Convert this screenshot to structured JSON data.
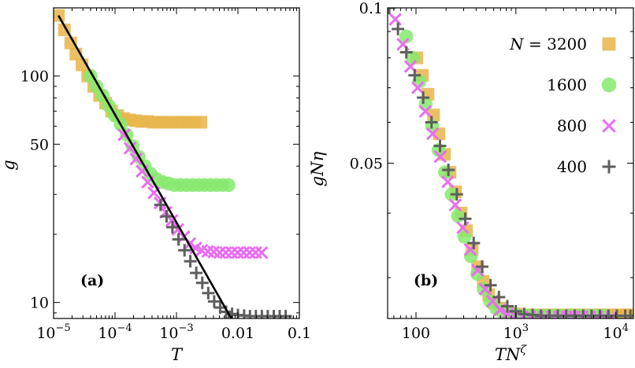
{
  "chart_data": [
    {
      "type": "scatter",
      "panel_label": "(a)",
      "xlabel": "T",
      "ylabel": "g",
      "xscale": "log",
      "yscale": "log",
      "xlim": [
        1e-05,
        0.1
      ],
      "ylim": [
        8.5,
        200
      ],
      "x_ticks": [
        {
          "value": 1e-05,
          "mant": "10",
          "exp": "−5"
        },
        {
          "value": 0.0001,
          "mant": "10",
          "exp": "−4"
        },
        {
          "value": 0.001,
          "mant": "10",
          "exp": "−3"
        },
        {
          "value": 0.01,
          "mant": "0.01",
          "exp": ""
        },
        {
          "value": 0.1,
          "mant": "0.1",
          "exp": ""
        }
      ],
      "y_ticks": [
        {
          "value": 10,
          "label": "10"
        },
        {
          "value": 50,
          "label": "50"
        },
        {
          "value": 100,
          "label": "100"
        }
      ],
      "series": [
        {
          "name": "N = 3200",
          "marker": "square",
          "color": "#e8b54a",
          "x": [
            1.2e-05,
            1.5e-05,
            1.9e-05,
            2.3e-05,
            2.9e-05,
            3.6e-05,
            4.5e-05,
            5.6e-05,
            7e-05,
            8.8e-05,
            0.00011,
            0.000138,
            0.000173,
            0.000216,
            0.00027,
            0.000338,
            0.000423,
            0.00053,
            0.00066,
            0.00083,
            0.00104,
            0.0013,
            0.00162,
            0.002,
            0.0025
          ],
          "y": [
            185,
            160,
            140,
            125,
            112,
            100,
            90,
            82,
            76,
            70,
            67,
            65,
            64,
            63.5,
            63,
            63,
            62.5,
            62.5,
            62.5,
            62.5,
            62.5,
            62.5,
            62.5,
            62.5,
            62.5
          ]
        },
        {
          "name": "1600",
          "marker": "circle",
          "color": "#86e96f",
          "x": [
            4e-05,
            5e-05,
            6.3e-05,
            7.9e-05,
            9.9e-05,
            0.000124,
            0.000155,
            0.000194,
            0.000243,
            0.000304,
            0.00038,
            0.000476,
            0.000596,
            0.000746,
            0.00093,
            0.00117,
            0.00146,
            0.00183,
            0.00229,
            0.00287,
            0.00359,
            0.0045,
            0.00563,
            0.00705
          ],
          "y": [
            100,
            90,
            82,
            74,
            67,
            61,
            55,
            49,
            44,
            40,
            37,
            35,
            34,
            33.5,
            33,
            33,
            33,
            33,
            33,
            33,
            33,
            33,
            33,
            33
          ]
        },
        {
          "name": "800",
          "marker": "x",
          "color": "#e86ef0",
          "x": [
            0.00014,
            0.000175,
            0.00022,
            0.000275,
            0.00034,
            0.00043,
            0.00054,
            0.00067,
            0.00084,
            0.00105,
            0.00132,
            0.00165,
            0.00206,
            0.00258,
            0.00323,
            0.00404,
            0.00506,
            0.00633,
            0.00792,
            0.0099,
            0.0124,
            0.0155,
            0.0194,
            0.0243
          ],
          "y": [
            55,
            48,
            43,
            38,
            34,
            30.5,
            27.5,
            25,
            23,
            21,
            19.5,
            18.2,
            17.4,
            17,
            16.8,
            16.7,
            16.6,
            16.6,
            16.6,
            16.6,
            16.6,
            16.6,
            16.6,
            16.6
          ]
        },
        {
          "name": "400",
          "marker": "plus",
          "color": "#5f5f5f",
          "x": [
            0.00055,
            0.00069,
            0.00086,
            0.00108,
            0.00135,
            0.00168,
            0.0021,
            0.00263,
            0.00329,
            0.00411,
            0.00514,
            0.00642,
            0.00803,
            0.01,
            0.0126,
            0.0157,
            0.0196,
            0.0245,
            0.0306,
            0.0383,
            0.0478,
            0.0598
          ],
          "y": [
            27,
            24,
            21.5,
            19,
            17,
            15.2,
            13.5,
            12.2,
            11,
            10.1,
            9.5,
            9.1,
            8.9,
            8.8,
            8.75,
            8.7,
            8.7,
            8.7,
            8.7,
            8.7,
            8.7,
            8.7
          ]
        }
      ],
      "fit_line": {
        "x": [
          1.2e-05,
          0.0078
        ],
        "y": [
          185,
          8.5
        ],
        "color": "#000000"
      }
    },
    {
      "type": "scatter",
      "panel_label": "(b)",
      "xlabel_base": "TN",
      "xlabel_sup": "ζ",
      "ylabel": "gNη",
      "xscale": "log",
      "yscale": "log",
      "xlim": [
        52,
        15000
      ],
      "ylim": [
        0.025,
        0.1
      ],
      "x_ticks": [
        {
          "value": 100,
          "mant": "100",
          "exp": ""
        },
        {
          "value": 1000,
          "mant": "10",
          "exp": "3"
        },
        {
          "value": 10000,
          "mant": "10",
          "exp": "4"
        }
      ],
      "y_ticks": [
        {
          "value": 0.05,
          "label": "0.05"
        },
        {
          "value": 0.1,
          "label": "0.1"
        }
      ],
      "series": [
        {
          "name": "N = 3200",
          "marker": "square",
          "color": "#e8b54a",
          "x": [
            102,
            116,
            132,
            150,
            170,
            193,
            219,
            249,
            283,
            321,
            365,
            414,
            470,
            534,
            606,
            688,
            781,
            887,
            1007,
            1144,
            1299,
            1475,
            1675,
            1902,
            2160,
            2453,
            2785,
            3163,
            3592,
            4079,
            4632,
            5260,
            5973,
            6783,
            7703,
            8748,
            9934,
            11281,
            12810,
            14548
          ],
          "y": [
            0.08,
            0.074,
            0.068,
            0.062,
            0.057,
            0.052,
            0.048,
            0.044,
            0.04,
            0.037,
            0.034,
            0.0315,
            0.0295,
            0.0278,
            0.0268,
            0.0262,
            0.0258,
            0.0256,
            0.0255,
            0.0254,
            0.0254,
            0.0254,
            0.0254,
            0.0254,
            0.0254,
            0.0254,
            0.0254,
            0.0254,
            0.0254,
            0.0254,
            0.0254,
            0.0254,
            0.0254,
            0.0254,
            0.0254,
            0.0254,
            0.0254,
            0.0254,
            0.0254,
            0.0254
          ]
        },
        {
          "name": "1600",
          "marker": "circle",
          "color": "#86e96f",
          "x": [
            80,
            93,
            108,
            125,
            145,
            168,
            195,
            227,
            263,
            305,
            354,
            410,
            476,
            552,
            640,
            742,
            861,
            999,
            1158,
            1343,
            1558,
            1807,
            2096,
            2431,
            2820,
            3271,
            3794,
            4401,
            5104,
            5921,
            6867,
            7964
          ],
          "y": [
            0.088,
            0.08,
            0.072,
            0.065,
            0.059,
            0.053,
            0.048,
            0.0435,
            0.0395,
            0.036,
            0.033,
            0.0305,
            0.0285,
            0.027,
            0.0261,
            0.0257,
            0.0255,
            0.0254,
            0.0253,
            0.0253,
            0.0253,
            0.0253,
            0.0253,
            0.0253,
            0.0253,
            0.0253,
            0.0253,
            0.0253,
            0.0253,
            0.0253,
            0.0253,
            0.0253
          ]
        },
        {
          "name": "800",
          "marker": "x",
          "color": "#e86ef0",
          "x": [
            62,
            74,
            88,
            104,
            124,
            147,
            175,
            208,
            247,
            294,
            349,
            414,
            492,
            584,
            693,
            823,
            978,
            1161,
            1379,
            1637,
            1943,
            2307,
            2739,
            3252,
            3861,
            4584,
            5443,
            6463,
            7674,
            9112
          ],
          "y": [
            0.095,
            0.085,
            0.077,
            0.07,
            0.063,
            0.057,
            0.0515,
            0.046,
            0.0415,
            0.0375,
            0.034,
            0.031,
            0.0285,
            0.027,
            0.026,
            0.0255,
            0.0253,
            0.0252,
            0.0252,
            0.0252,
            0.0252,
            0.0252,
            0.0252,
            0.0252,
            0.0252,
            0.0252,
            0.0252,
            0.0252,
            0.0252,
            0.0252
          ]
        },
        {
          "name": "400",
          "marker": "plus",
          "color": "#5f5f5f",
          "x": [
            54,
            66,
            80,
            97,
            118,
            143,
            174,
            211,
            256,
            311,
            378,
            459,
            557,
            676,
            821,
            997,
            1210,
            1469,
            1784,
            2166,
            2630,
            3193,
            3877,
            4707,
            5715,
            6938,
            8424,
            10227,
            12416,
            14000
          ],
          "y": [
            0.1,
            0.091,
            0.082,
            0.074,
            0.067,
            0.06,
            0.054,
            0.0485,
            0.0435,
            0.039,
            0.035,
            0.0315,
            0.029,
            0.0275,
            0.0264,
            0.0258,
            0.0255,
            0.0254,
            0.0253,
            0.0253,
            0.0253,
            0.0253,
            0.0253,
            0.0253,
            0.0253,
            0.0253,
            0.0253,
            0.0253,
            0.0253,
            0.0253
          ]
        }
      ],
      "legend": {
        "placement": "top-right",
        "entries": [
          {
            "prefix": "N",
            "label": " = 3200",
            "marker": "square",
            "color": "#e8b54a"
          },
          {
            "prefix": "",
            "label": "1600",
            "marker": "circle",
            "color": "#86e96f"
          },
          {
            "prefix": "",
            "label": "800",
            "marker": "x",
            "color": "#e86ef0"
          },
          {
            "prefix": "",
            "label": "400",
            "marker": "plus",
            "color": "#5f5f5f"
          }
        ]
      }
    }
  ]
}
